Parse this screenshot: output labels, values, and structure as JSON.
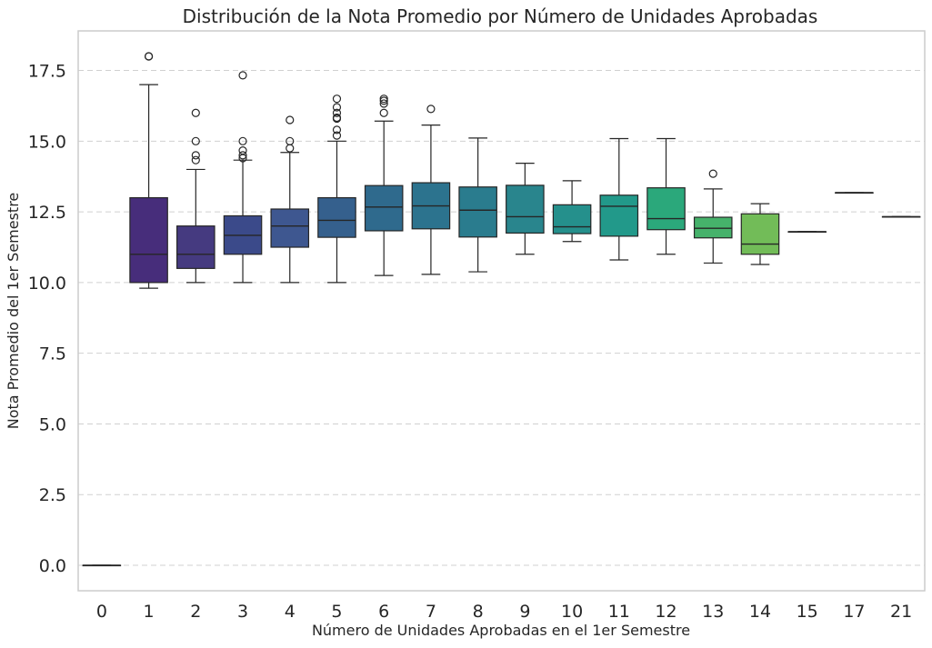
{
  "chart_data": {
    "type": "box",
    "title": "Distribución de la Nota Promedio por Número de Unidades Aprobadas",
    "xlabel": "Número de Unidades Aprobadas en el 1er Semestre",
    "ylabel": "Nota Promedio del 1er Semestre",
    "ylim": [
      -0.9,
      18.9
    ],
    "yticks": [
      0.0,
      2.5,
      5.0,
      7.5,
      10.0,
      12.5,
      15.0,
      17.5
    ],
    "ytick_labels": [
      "0.0",
      "2.5",
      "5.0",
      "7.5",
      "10.0",
      "12.5",
      "15.0",
      "17.5"
    ],
    "grid": "horizontal dashed",
    "categories": [
      "0",
      "1",
      "2",
      "3",
      "4",
      "5",
      "6",
      "7",
      "8",
      "9",
      "10",
      "11",
      "12",
      "13",
      "14",
      "15",
      "17",
      "21"
    ],
    "boxes": [
      {
        "category": "0",
        "whislo": 0.0,
        "q1": 0.0,
        "med": 0.0,
        "q3": 0.0,
        "whishi": 0.0,
        "fliers": [],
        "color": "#440154"
      },
      {
        "category": "1",
        "whislo": 9.8,
        "q1": 10.0,
        "med": 11.0,
        "q3": 13.0,
        "whishi": 17.0,
        "fliers": [
          18.0,
          18.0
        ],
        "color": "#472d7b"
      },
      {
        "category": "2",
        "whislo": 10.0,
        "q1": 10.5,
        "med": 11.0,
        "q3": 12.0,
        "whishi": 14.0,
        "fliers": [
          14.33,
          14.5,
          15.0,
          16.0
        ],
        "color": "#453a80"
      },
      {
        "category": "3",
        "whislo": 10.0,
        "q1": 11.0,
        "med": 11.67,
        "q3": 12.36,
        "whishi": 14.33,
        "fliers": [
          14.4,
          14.5,
          14.67,
          15.0,
          17.33
        ],
        "color": "#3b4a8a"
      },
      {
        "category": "4",
        "whislo": 10.0,
        "q1": 11.25,
        "med": 12.0,
        "q3": 12.6,
        "whishi": 14.6,
        "fliers": [
          14.75,
          15.0,
          15.75
        ],
        "color": "#3e5790"
      },
      {
        "category": "5",
        "whislo": 10.0,
        "q1": 11.6,
        "med": 12.2,
        "q3": 13.0,
        "whishi": 15.0,
        "fliers": [
          15.2,
          15.4,
          15.8,
          15.83,
          16.0,
          16.2,
          16.5
        ],
        "color": "#35608d"
      },
      {
        "category": "6",
        "whislo": 10.25,
        "q1": 11.83,
        "med": 12.67,
        "q3": 13.43,
        "whishi": 15.71,
        "fliers": [
          16.0,
          16.33,
          16.43,
          16.5
        ],
        "color": "#2f6a8d"
      },
      {
        "category": "7",
        "whislo": 10.29,
        "q1": 11.9,
        "med": 12.71,
        "q3": 13.53,
        "whishi": 15.57,
        "fliers": [
          16.14
        ],
        "color": "#2c738e"
      },
      {
        "category": "8",
        "whislo": 10.38,
        "q1": 11.61,
        "med": 12.56,
        "q3": 13.38,
        "whishi": 15.11,
        "fliers": [],
        "color": "#2a7c8e"
      },
      {
        "category": "9",
        "whislo": 11.0,
        "q1": 11.75,
        "med": 12.33,
        "q3": 13.44,
        "whishi": 14.22,
        "fliers": [],
        "color": "#29858d"
      },
      {
        "category": "10",
        "whislo": 11.45,
        "q1": 11.73,
        "med": 11.97,
        "q3": 12.75,
        "whishi": 13.6,
        "fliers": [],
        "color": "#25908c"
      },
      {
        "category": "11",
        "whislo": 10.8,
        "q1": 11.64,
        "med": 12.7,
        "q3": 13.09,
        "whishi": 15.09,
        "fliers": [],
        "color": "#22998a"
      },
      {
        "category": "12",
        "whislo": 11.0,
        "q1": 11.87,
        "med": 12.26,
        "q3": 13.35,
        "whishi": 15.09,
        "fliers": [],
        "color": "#2ba87b"
      },
      {
        "category": "13",
        "whislo": 10.69,
        "q1": 11.58,
        "med": 11.92,
        "q3": 12.31,
        "whishi": 13.31,
        "fliers": [
          13.85
        ],
        "color": "#46b26b"
      },
      {
        "category": "14",
        "whislo": 10.64,
        "q1": 11.0,
        "med": 11.36,
        "q3": 12.43,
        "whishi": 12.79,
        "fliers": [],
        "color": "#72bc58"
      },
      {
        "category": "15",
        "whislo": 11.8,
        "q1": 11.8,
        "med": 11.8,
        "q3": 11.8,
        "whishi": 11.8,
        "fliers": [],
        "color": "#98c83e"
      },
      {
        "category": "17",
        "whislo": 13.18,
        "q1": 13.18,
        "med": 13.18,
        "q3": 13.18,
        "whishi": 13.18,
        "fliers": [],
        "color": "#c1d52c"
      },
      {
        "category": "21",
        "whislo": 12.33,
        "q1": 12.33,
        "med": 12.33,
        "q3": 12.33,
        "whishi": 12.33,
        "fliers": [],
        "color": "#e5e21a"
      }
    ]
  }
}
